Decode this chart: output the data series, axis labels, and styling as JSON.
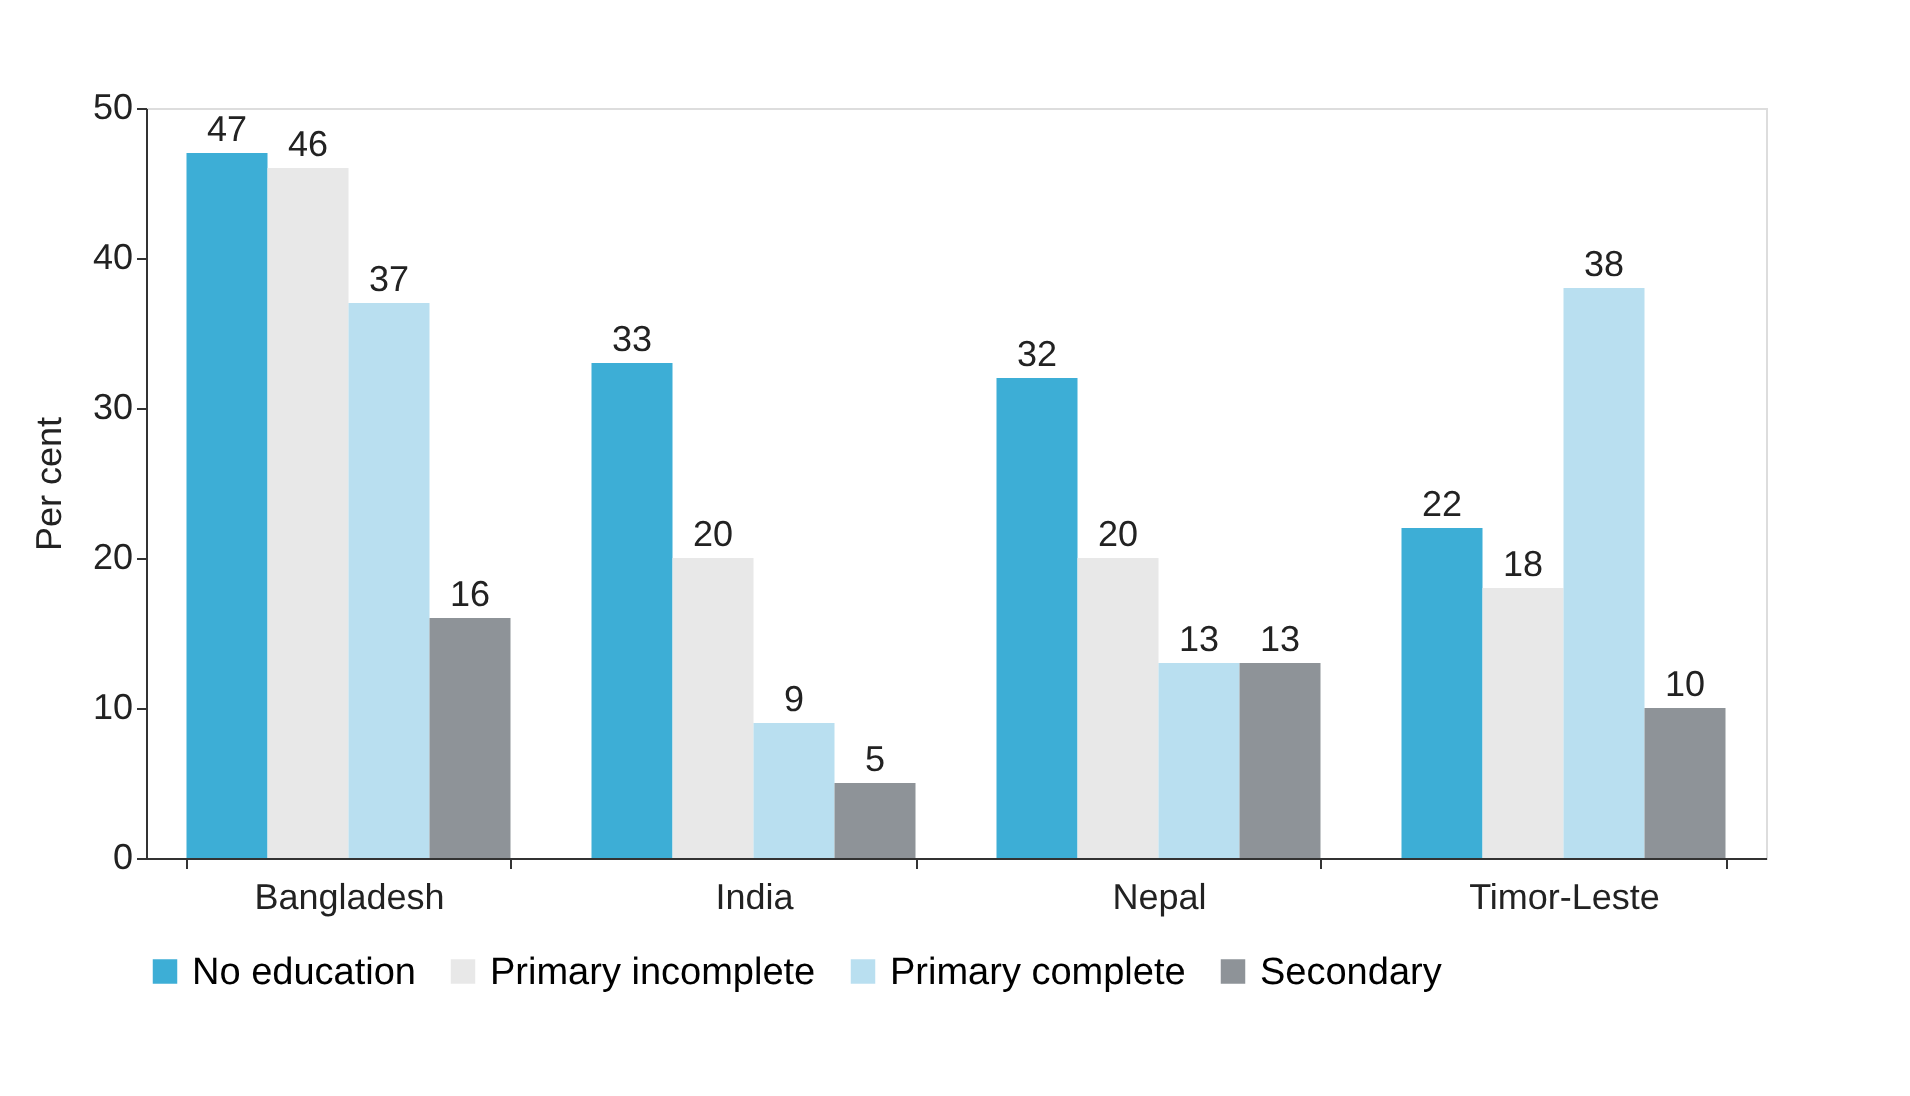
{
  "chart_data": {
    "type": "bar",
    "ylabel": "Per cent",
    "categories": [
      "Bangladesh",
      "India",
      "Nepal",
      "Timor-Leste"
    ],
    "series": [
      {
        "name": "No education",
        "color": "#3daed6",
        "values": [
          47,
          33,
          32,
          22
        ]
      },
      {
        "name": "Primary incomplete",
        "color": "#e8e8e8",
        "values": [
          46,
          20,
          20,
          18
        ]
      },
      {
        "name": "Primary complete",
        "color": "#b9dff0",
        "values": [
          37,
          9,
          13,
          38
        ]
      },
      {
        "name": "Secondary",
        "color": "#8e9398",
        "values": [
          16,
          5,
          13,
          10
        ]
      }
    ],
    "ylim": [
      0,
      50
    ],
    "yticks": [
      0,
      10,
      20,
      30,
      40,
      50
    ],
    "grid": false,
    "legend": "bottom",
    "data_labels": true
  }
}
